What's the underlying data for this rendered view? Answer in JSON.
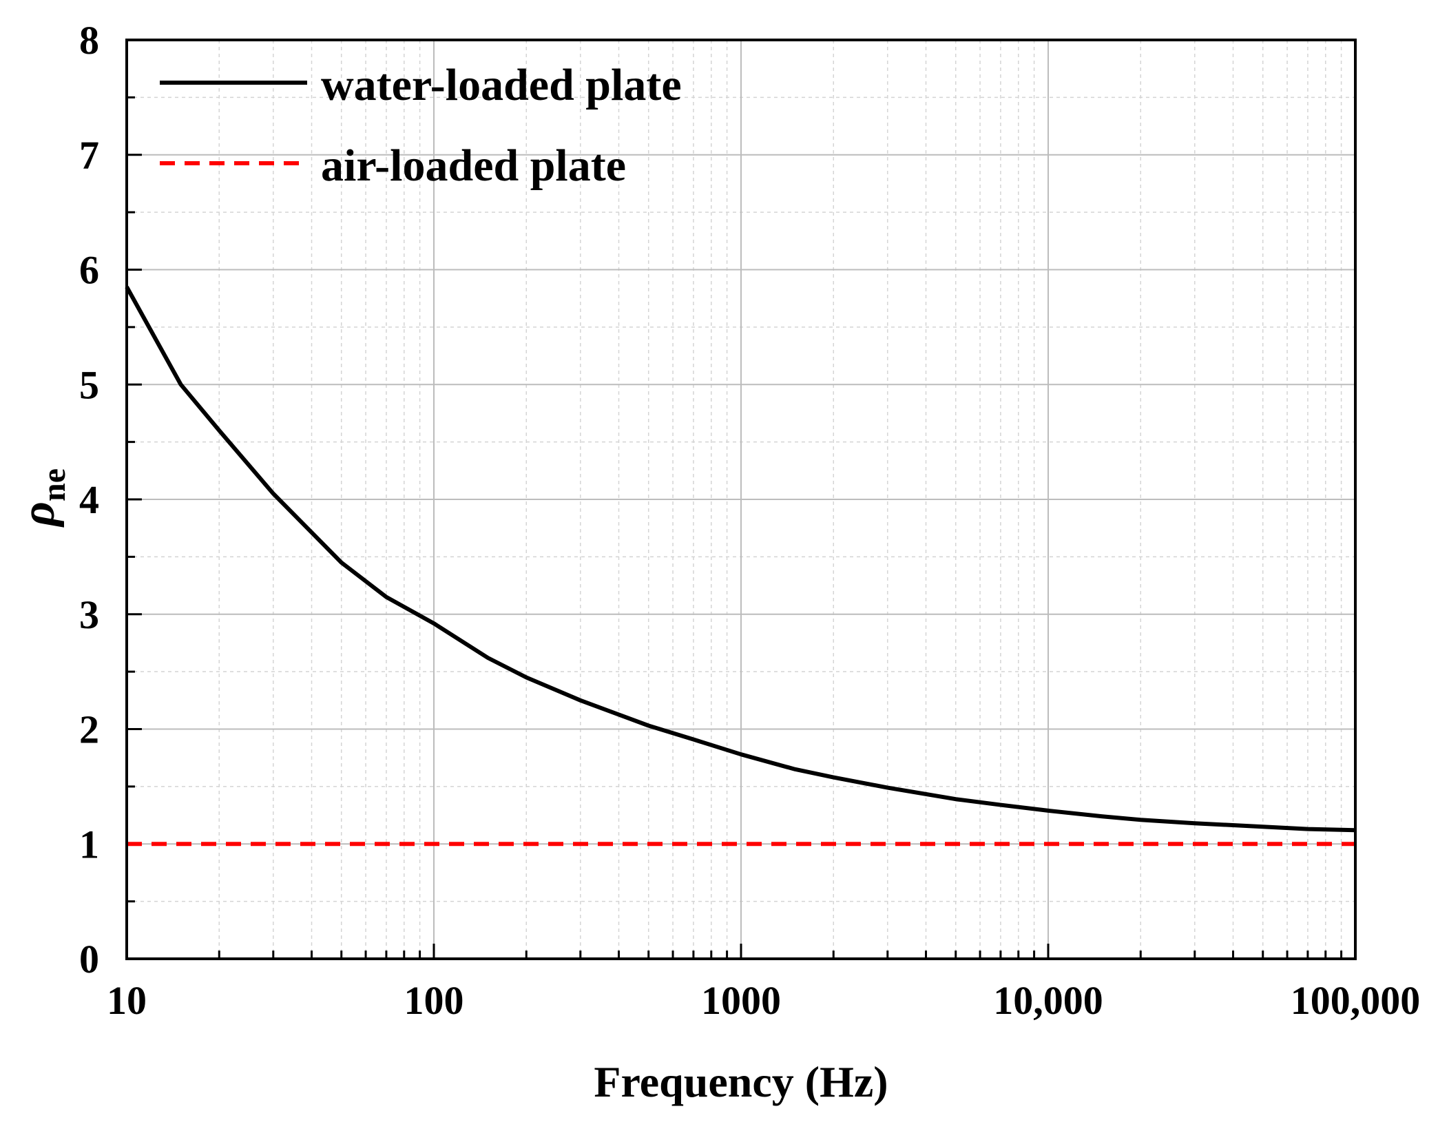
{
  "chart_data": {
    "type": "line",
    "title": "",
    "xlabel": "Frequency (Hz)",
    "ylabel": "ρ",
    "ylabel_subscript": "ne",
    "x_scale": "log",
    "xlim": [
      10,
      100000
    ],
    "ylim": [
      0,
      8
    ],
    "grid": true,
    "legend_position": "top-left",
    "x_ticks": [
      10,
      100,
      1000,
      10000,
      100000
    ],
    "x_tick_labels": [
      "10",
      "100",
      "1000",
      "10,000",
      "100,000"
    ],
    "y_ticks": [
      0,
      1,
      2,
      3,
      4,
      5,
      6,
      7,
      8
    ],
    "y_tick_labels": [
      "0",
      "1",
      "2",
      "3",
      "4",
      "5",
      "6",
      "7",
      "8"
    ],
    "series": [
      {
        "name": "water-loaded plate",
        "color": "#000000",
        "style": "solid",
        "x": [
          10,
          15,
          20,
          30,
          50,
          70,
          100,
          150,
          200,
          300,
          500,
          700,
          1000,
          1500,
          2000,
          3000,
          5000,
          7000,
          10000,
          15000,
          20000,
          30000,
          50000,
          70000,
          100000
        ],
        "y": [
          5.85,
          5.0,
          4.6,
          4.05,
          3.45,
          3.15,
          2.92,
          2.62,
          2.45,
          2.25,
          2.03,
          1.91,
          1.78,
          1.65,
          1.58,
          1.49,
          1.39,
          1.34,
          1.29,
          1.24,
          1.21,
          1.18,
          1.15,
          1.13,
          1.12
        ]
      },
      {
        "name": "air-loaded plate",
        "color": "#ff0000",
        "style": "dashed",
        "x": [
          10,
          100000
        ],
        "y": [
          1.0,
          1.0
        ]
      }
    ]
  }
}
